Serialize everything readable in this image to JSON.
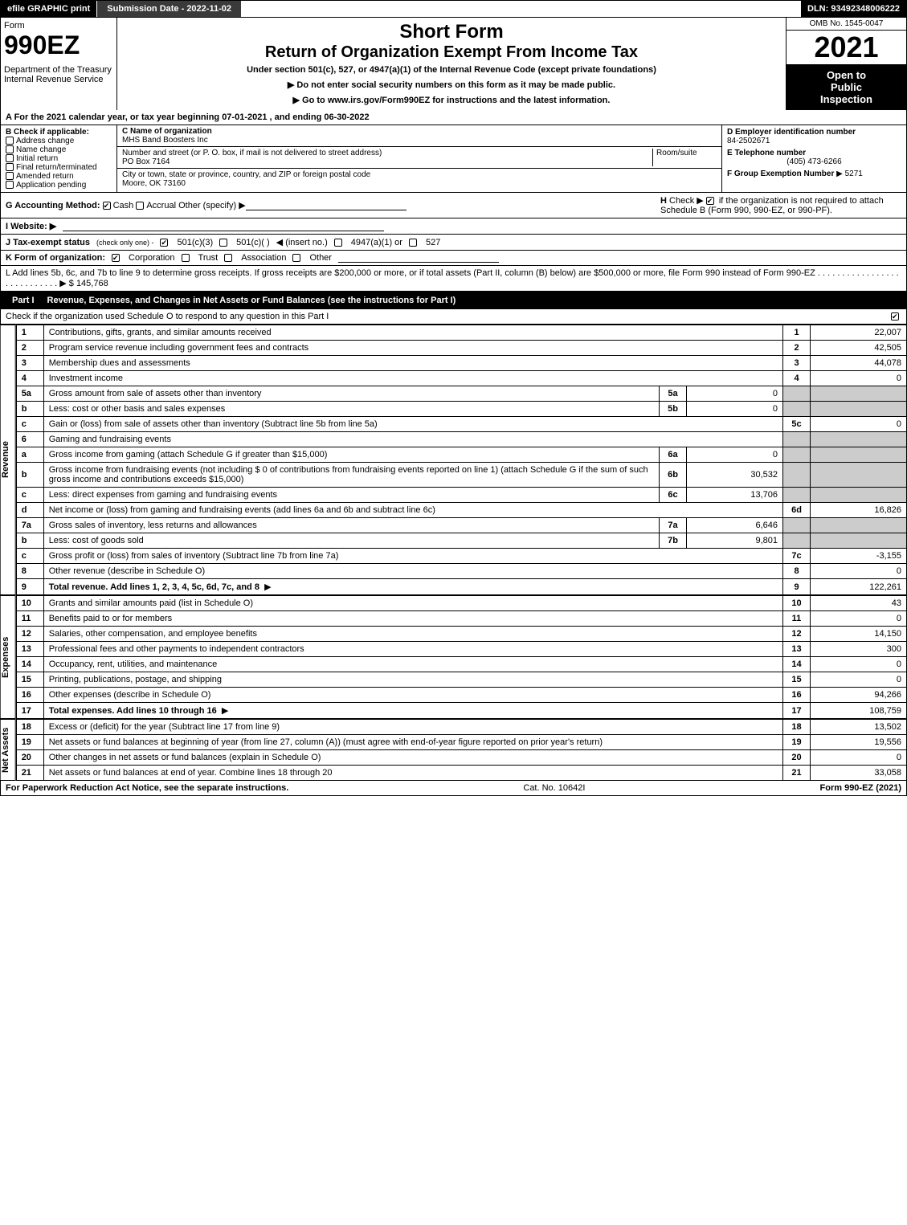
{
  "topbar": {
    "efile": "efile GRAPHIC print",
    "submission": "Submission Date - 2022-11-02",
    "dln": "DLN: 93492348006222"
  },
  "header": {
    "form_word": "Form",
    "form_number": "990EZ",
    "dept": "Department of the Treasury",
    "irs": "Internal Revenue Service",
    "short_form": "Short Form",
    "main_title": "Return of Organization Exempt From Income Tax",
    "subtitle": "Under section 501(c), 527, or 4947(a)(1) of the Internal Revenue Code (except private foundations)",
    "arrow1": "▶ Do not enter social security numbers on this form as it may be made public.",
    "arrow2": "▶ Go to www.irs.gov/Form990EZ for instructions and the latest information.",
    "omb": "OMB No. 1545-0047",
    "year": "2021",
    "open1": "Open to",
    "open2": "Public",
    "open3": "Inspection"
  },
  "section_a": "A  For the 2021 calendar year, or tax year beginning 07-01-2021 , and ending 06-30-2022",
  "b": {
    "label": "B  Check if applicable:",
    "addr_change": "Address change",
    "name_change": "Name change",
    "initial": "Initial return",
    "final": "Final return/terminated",
    "amended": "Amended return",
    "pending": "Application pending"
  },
  "c": {
    "name_label": "C Name of organization",
    "name": "MHS Band Boosters Inc",
    "street_label": "Number and street (or P. O. box, if mail is not delivered to street address)",
    "room_label": "Room/suite",
    "street": "PO Box 7164",
    "city_label": "City or town, state or province, country, and ZIP or foreign postal code",
    "city": "Moore, OK  73160"
  },
  "d": {
    "label": "D Employer identification number",
    "ein": "84-2502671",
    "e_label": "E Telephone number",
    "phone": "(405) 473-6266",
    "f_label": "F Group Exemption Number",
    "f_arrow": "▶ 5271"
  },
  "g": {
    "label": "G Accounting Method:",
    "cash": "Cash",
    "accrual": "Accrual",
    "other": "Other (specify) ▶"
  },
  "h": {
    "label": "H",
    "text1": "Check ▶",
    "text2": "if the organization is not required to attach Schedule B (Form 990, 990-EZ, or 990-PF)."
  },
  "i": {
    "label": "I Website: ▶"
  },
  "j": {
    "label": "J Tax-exempt status",
    "sub": "(check only one) -",
    "o1": "501(c)(3)",
    "o2": "501(c)( )",
    "insert": "◀ (insert no.)",
    "o3": "4947(a)(1) or",
    "o4": "527"
  },
  "k": {
    "label": "K Form of organization:",
    "corp": "Corporation",
    "trust": "Trust",
    "assoc": "Association",
    "other": "Other"
  },
  "l": {
    "text": "L Add lines 5b, 6c, and 7b to line 9 to determine gross receipts. If gross receipts are $200,000 or more, or if total assets (Part II, column (B) below) are $500,000 or more, file Form 990 instead of Form 990-EZ",
    "arrow": "▶ $ 145,768"
  },
  "part1": {
    "label": "Part I",
    "title": "Revenue, Expenses, and Changes in Net Assets or Fund Balances (see the instructions for Part I)",
    "check_line": "Check if the organization used Schedule O to respond to any question in this Part I"
  },
  "revenue": [
    {
      "n": "1",
      "d": "Contributions, gifts, grants, and similar amounts received",
      "ln": "1",
      "v": "22,007"
    },
    {
      "n": "2",
      "d": "Program service revenue including government fees and contracts",
      "ln": "2",
      "v": "42,505"
    },
    {
      "n": "3",
      "d": "Membership dues and assessments",
      "ln": "3",
      "v": "44,078"
    },
    {
      "n": "4",
      "d": "Investment income",
      "ln": "4",
      "v": "0"
    },
    {
      "n": "5a",
      "d": "Gross amount from sale of assets other than inventory",
      "sl": "5a",
      "sv": "0"
    },
    {
      "n": "b",
      "d": "Less: cost or other basis and sales expenses",
      "sl": "5b",
      "sv": "0"
    },
    {
      "n": "c",
      "d": "Gain or (loss) from sale of assets other than inventory (Subtract line 5b from line 5a)",
      "ln": "5c",
      "v": "0"
    },
    {
      "n": "6",
      "d": "Gaming and fundraising events"
    },
    {
      "n": "a",
      "d": "Gross income from gaming (attach Schedule G if greater than $15,000)",
      "sl": "6a",
      "sv": "0"
    },
    {
      "n": "b",
      "d": "Gross income from fundraising events (not including $ 0 of contributions from fundraising events reported on line 1) (attach Schedule G if the sum of such gross income and contributions exceeds $15,000)",
      "sl": "6b",
      "sv": "30,532"
    },
    {
      "n": "c",
      "d": "Less: direct expenses from gaming and fundraising events",
      "sl": "6c",
      "sv": "13,706"
    },
    {
      "n": "d",
      "d": "Net income or (loss) from gaming and fundraising events (add lines 6a and 6b and subtract line 6c)",
      "ln": "6d",
      "v": "16,826"
    },
    {
      "n": "7a",
      "d": "Gross sales of inventory, less returns and allowances",
      "sl": "7a",
      "sv": "6,646"
    },
    {
      "n": "b",
      "d": "Less: cost of goods sold",
      "sl": "7b",
      "sv": "9,801"
    },
    {
      "n": "c",
      "d": "Gross profit or (loss) from sales of inventory (Subtract line 7b from line 7a)",
      "ln": "7c",
      "v": "-3,155"
    },
    {
      "n": "8",
      "d": "Other revenue (describe in Schedule O)",
      "ln": "8",
      "v": "0"
    },
    {
      "n": "9",
      "d": "Total revenue. Add lines 1, 2, 3, 4, 5c, 6d, 7c, and 8",
      "ln": "9",
      "v": "122,261",
      "bold": true,
      "arrow": true
    }
  ],
  "expenses": [
    {
      "n": "10",
      "d": "Grants and similar amounts paid (list in Schedule O)",
      "ln": "10",
      "v": "43"
    },
    {
      "n": "11",
      "d": "Benefits paid to or for members",
      "ln": "11",
      "v": "0"
    },
    {
      "n": "12",
      "d": "Salaries, other compensation, and employee benefits",
      "ln": "12",
      "v": "14,150"
    },
    {
      "n": "13",
      "d": "Professional fees and other payments to independent contractors",
      "ln": "13",
      "v": "300"
    },
    {
      "n": "14",
      "d": "Occupancy, rent, utilities, and maintenance",
      "ln": "14",
      "v": "0"
    },
    {
      "n": "15",
      "d": "Printing, publications, postage, and shipping",
      "ln": "15",
      "v": "0"
    },
    {
      "n": "16",
      "d": "Other expenses (describe in Schedule O)",
      "ln": "16",
      "v": "94,266"
    },
    {
      "n": "17",
      "d": "Total expenses. Add lines 10 through 16",
      "ln": "17",
      "v": "108,759",
      "bold": true,
      "arrow": true
    }
  ],
  "netassets": [
    {
      "n": "18",
      "d": "Excess or (deficit) for the year (Subtract line 17 from line 9)",
      "ln": "18",
      "v": "13,502"
    },
    {
      "n": "19",
      "d": "Net assets or fund balances at beginning of year (from line 27, column (A)) (must agree with end-of-year figure reported on prior year's return)",
      "ln": "19",
      "v": "19,556"
    },
    {
      "n": "20",
      "d": "Other changes in net assets or fund balances (explain in Schedule O)",
      "ln": "20",
      "v": "0"
    },
    {
      "n": "21",
      "d": "Net assets or fund balances at end of year. Combine lines 18 through 20",
      "ln": "21",
      "v": "33,058"
    }
  ],
  "side": {
    "rev": "Revenue",
    "exp": "Expenses",
    "na": "Net Assets"
  },
  "footer": {
    "left": "For Paperwork Reduction Act Notice, see the separate instructions.",
    "mid": "Cat. No. 10642I",
    "right": "Form 990-EZ (2021)"
  }
}
